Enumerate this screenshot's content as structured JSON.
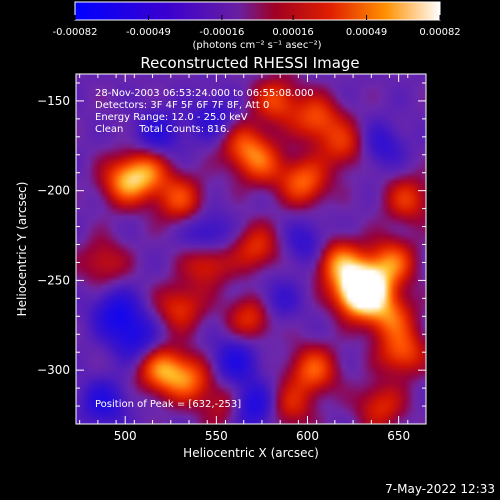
{
  "colorbar": {
    "ticks": [
      "-0.00082",
      "-0.00049",
      "-0.00016",
      "0.00016",
      "0.00049",
      "0.00082"
    ],
    "units_line": "(photons cm⁻² s⁻¹ asec⁻²)"
  },
  "chart_data": {
    "type": "heatmap",
    "title": "Reconstructed RHESSI Image",
    "xlabel": "Heliocentric X (arcsec)",
    "ylabel": "Heliocentric Y (arcsec)",
    "xlim": [
      473,
      665
    ],
    "ylim": [
      -330,
      -135
    ],
    "xticks": [
      500,
      550,
      600,
      650
    ],
    "yticks": [
      -150,
      -200,
      -250,
      -300
    ],
    "value_range": [
      -0.00082,
      0.00082
    ],
    "colormap": "blue-purple-red-yellow-white",
    "peak": [
      632,
      -253
    ],
    "annotations": [
      "28-Nov-2003 06:53:24.000 to 06:55:08.000",
      "Detectors: 3F 4F 5F 6F 7F 8F, Att 0",
      "Energy Range: 12.0 - 25.0 keV",
      "Clean     Total Counts: 816.",
      "Position of Peak = [632,-253]"
    ],
    "sources": [
      {
        "x": 632,
        "y": -253,
        "value": 0.00082
      },
      {
        "x": 628,
        "y": -258,
        "value": 0.00075
      },
      {
        "x": 617,
        "y": -240,
        "value": 0.00062
      },
      {
        "x": 646,
        "y": -240,
        "value": 0.00055
      },
      {
        "x": 645,
        "y": -270,
        "value": 0.00052
      },
      {
        "x": 652,
        "y": -290,
        "value": 0.0005
      },
      {
        "x": 603,
        "y": -300,
        "value": 0.00052
      },
      {
        "x": 598,
        "y": -195,
        "value": 0.00055
      },
      {
        "x": 605,
        "y": -160,
        "value": 0.00048
      },
      {
        "x": 583,
        "y": -150,
        "value": 0.00045
      },
      {
        "x": 565,
        "y": -175,
        "value": 0.00045
      },
      {
        "x": 575,
        "y": -185,
        "value": 0.0004
      },
      {
        "x": 500,
        "y": -195,
        "value": 0.00058
      },
      {
        "x": 512,
        "y": -190,
        "value": 0.0005
      },
      {
        "x": 530,
        "y": -205,
        "value": 0.00045
      },
      {
        "x": 545,
        "y": -240,
        "value": 0.00042
      },
      {
        "x": 530,
        "y": -265,
        "value": 0.0004
      },
      {
        "x": 570,
        "y": -270,
        "value": 0.00045
      },
      {
        "x": 572,
        "y": -232,
        "value": 0.0004
      },
      {
        "x": 520,
        "y": -300,
        "value": 0.0006
      },
      {
        "x": 535,
        "y": -305,
        "value": 0.0005
      },
      {
        "x": 488,
        "y": -240,
        "value": 0.0003
      },
      {
        "x": 655,
        "y": -205,
        "value": 0.0004
      },
      {
        "x": 640,
        "y": -320,
        "value": 0.00038
      },
      {
        "x": 590,
        "y": -320,
        "value": 0.00035
      },
      {
        "x": 620,
        "y": -175,
        "value": 0.0004
      },
      {
        "x": 555,
        "y": -320,
        "value": 0.0003
      },
      {
        "x": 548,
        "y": -160,
        "value": -0.0003
      },
      {
        "x": 545,
        "y": -225,
        "value": -0.00035
      },
      {
        "x": 600,
        "y": -230,
        "value": -0.0003
      },
      {
        "x": 495,
        "y": -268,
        "value": -0.00045
      },
      {
        "x": 505,
        "y": -282,
        "value": -0.0004
      },
      {
        "x": 560,
        "y": -295,
        "value": -0.0004
      },
      {
        "x": 570,
        "y": -320,
        "value": -0.0005
      },
      {
        "x": 518,
        "y": -168,
        "value": -0.00035
      },
      {
        "x": 640,
        "y": -175,
        "value": -0.0003
      },
      {
        "x": 582,
        "y": -262,
        "value": -0.0003
      },
      {
        "x": 488,
        "y": -318,
        "value": -0.0004
      }
    ]
  },
  "footer": {
    "timestamp": "7-May-2022 12:33"
  }
}
